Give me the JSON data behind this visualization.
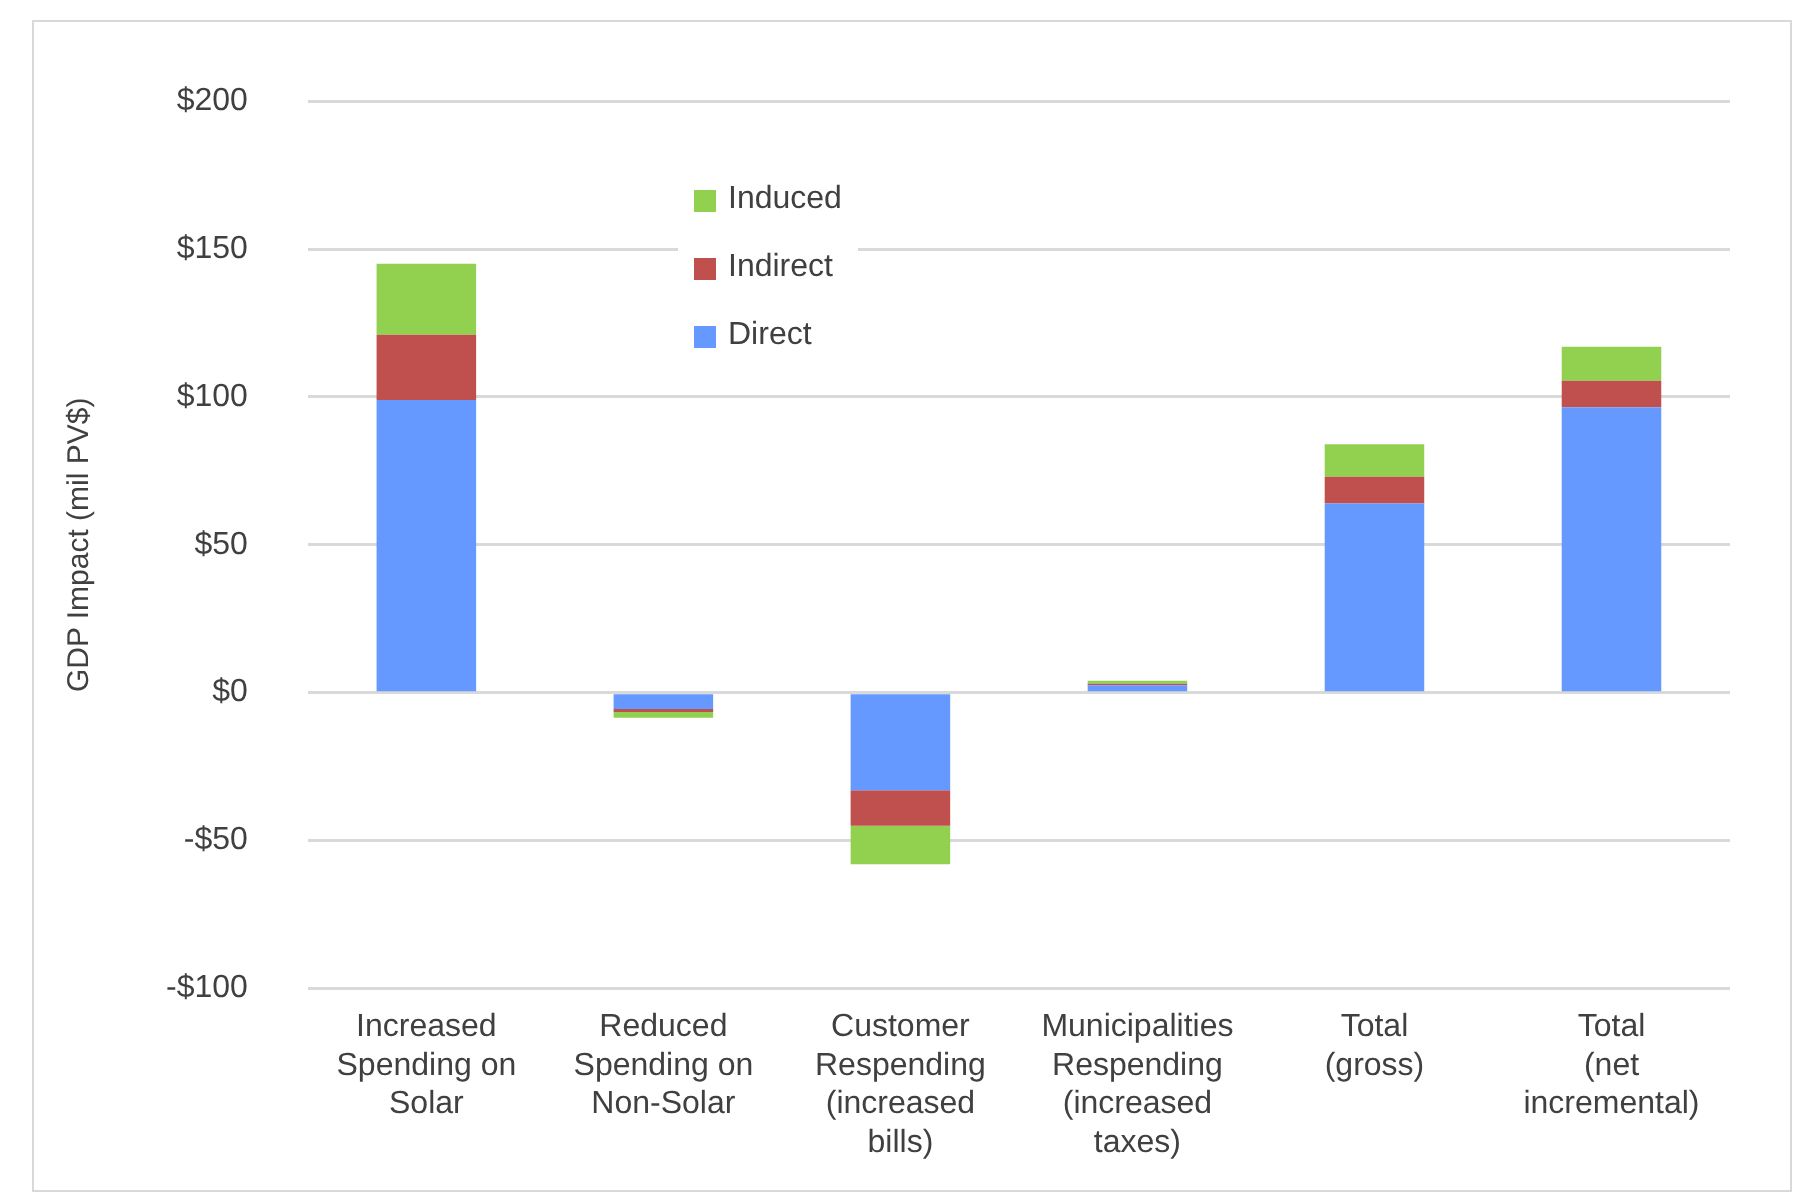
{
  "chart_data": {
    "type": "bar",
    "stacked": true,
    "ylabel": "GDP Impact (mil PV$)",
    "categories": [
      "Increased Spending on Solar",
      "Reduced Spending on Non-Solar",
      "Customer Respending (increased bills)",
      "Municipalities Respending (increased taxes)",
      "Total (gross)",
      "Total (net incremental)"
    ],
    "series": [
      {
        "name": "Direct",
        "color": "#6699ff",
        "values": [
          99,
          -5.5,
          -33,
          2.5,
          64,
          96.5
        ]
      },
      {
        "name": "Indirect",
        "color": "#c0504d",
        "values": [
          22,
          -1,
          -12,
          0.5,
          9,
          9
        ]
      },
      {
        "name": "Induced",
        "color": "#92d050",
        "values": [
          24,
          -2,
          -13,
          1,
          11,
          11.5
        ]
      }
    ],
    "ylim": [
      -100,
      200
    ],
    "yticks": [
      {
        "value": -100,
        "label": "-$100"
      },
      {
        "value": -50,
        "label": "-$50"
      },
      {
        "value": 0,
        "label": "$0"
      },
      {
        "value": 50,
        "label": "$50"
      },
      {
        "value": 100,
        "label": "$100"
      },
      {
        "value": 150,
        "label": "$150"
      },
      {
        "value": 200,
        "label": "$200"
      }
    ],
    "grid": "y",
    "legend": "top"
  }
}
